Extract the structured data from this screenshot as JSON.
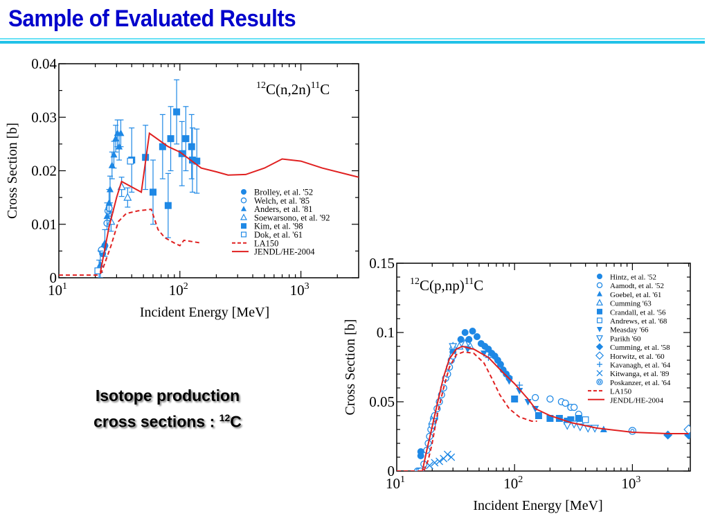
{
  "page": {
    "title": "Sample of Evaluated Results",
    "caption_line1": "Isotope production",
    "caption_line2": "cross sections : ",
    "caption_sup": "12",
    "caption_elem": "C"
  },
  "colors": {
    "title": "#0000cc",
    "exp": "#1e88e5",
    "eval": "#e02020"
  },
  "chart_data": [
    {
      "type": "scatter",
      "title_pre": "12",
      "title_mid": "C(n,2n)",
      "title_sup2": "11",
      "title_end": "C",
      "xlabel": "Incident Energy [MeV]",
      "ylabel": "Cross Section [b]",
      "xscale": "log",
      "xlim": [
        10,
        3000
      ],
      "ylim": [
        0,
        0.04
      ],
      "xticks": [
        {
          "base": "10",
          "exp": "1",
          "v": 10
        },
        {
          "base": "10",
          "exp": "2",
          "v": 100
        },
        {
          "base": "10",
          "exp": "3",
          "v": 1000
        }
      ],
      "yticks": [
        {
          "label": "0",
          "v": 0
        },
        {
          "label": "0.01",
          "v": 0.01
        },
        {
          "label": "0.02",
          "v": 0.02
        },
        {
          "label": "0.03",
          "v": 0.03
        },
        {
          "label": "0.04",
          "v": 0.04
        }
      ],
      "legend_position": "lower-right",
      "series": [
        {
          "name": "Brolley, et al. '52",
          "marker": "circle-filled",
          "points": [
            [
              23,
              0.0045
            ],
            [
              23.5,
              0.0055
            ],
            [
              24,
              0.006
            ]
          ]
        },
        {
          "name": "Welch, et al. '85",
          "marker": "circle-open",
          "points": [
            [
              22.5,
              0.0052
            ],
            [
              25,
              0.0102
            ],
            [
              25.5,
              0.0125
            ],
            [
              26,
              0.013
            ]
          ]
        },
        {
          "name": "Anders, et al. '81",
          "marker": "triangle-filled",
          "points": [
            [
              22,
              0.0025
            ],
            [
              24,
              0.0065
            ],
            [
              25,
              0.0115
            ],
            [
              26,
              0.014
            ],
            [
              26.5,
              0.0165
            ],
            [
              27.5,
              0.021
            ],
            [
              28.5,
              0.023
            ],
            [
              29.5,
              0.026
            ],
            [
              30.5,
              0.027
            ],
            [
              31.5,
              0.0245
            ],
            [
              32.5,
              0.027
            ]
          ],
          "err": 0.0025
        },
        {
          "name": "Soewarsono, et al. '92",
          "marker": "triangle-open",
          "points": [
            [
              21.5,
              0.0015
            ],
            [
              27,
              0.0105
            ],
            [
              33,
              0.017
            ],
            [
              37,
              0.015
            ]
          ],
          "err": 0.0018
        },
        {
          "name": "Kim, et al. '98",
          "marker": "square-filled",
          "points": [
            [
              40,
              0.022
            ],
            [
              52,
              0.0225
            ],
            [
              60,
              0.016
            ],
            [
              72,
              0.0245
            ],
            [
              80,
              0.0135
            ],
            [
              84,
              0.026
            ],
            [
              94,
              0.031
            ],
            [
              104,
              0.0232
            ],
            [
              112,
              0.026
            ],
            [
              125,
              0.0245
            ],
            [
              127,
              0.022
            ],
            [
              138,
              0.0218
            ]
          ],
          "err": 0.006
        },
        {
          "name": "Dok, et al. '61",
          "marker": "square-open",
          "points": [
            [
              21,
              0.0013
            ],
            [
              39,
              0.0218
            ]
          ]
        },
        {
          "name": "LA150",
          "marker": "dashed-line",
          "points": [
            [
              10,
              0.0005
            ],
            [
              21,
              0.0005
            ],
            [
              22.5,
              0.001
            ],
            [
              27,
              0.006
            ],
            [
              31,
              0.0105
            ],
            [
              36,
              0.012
            ],
            [
              45,
              0.0125
            ],
            [
              58,
              0.0128
            ],
            [
              66,
              0.009
            ],
            [
              75,
              0.0075
            ],
            [
              90,
              0.0065
            ],
            [
              100,
              0.006
            ],
            [
              108,
              0.007
            ],
            [
              150,
              0.0065
            ]
          ]
        },
        {
          "name": "JENDL/HE-2004",
          "marker": "solid-line",
          "points": [
            [
              22,
              0.001
            ],
            [
              26,
              0.0095
            ],
            [
              30,
              0.015
            ],
            [
              33,
              0.018
            ],
            [
              48,
              0.016
            ],
            [
              56,
              0.027
            ],
            [
              80,
              0.0245
            ],
            [
              100,
              0.0235
            ],
            [
              150,
              0.0205
            ],
            [
              200,
              0.0198
            ],
            [
              250,
              0.0192
            ],
            [
              350,
              0.0193
            ],
            [
              500,
              0.0205
            ],
            [
              700,
              0.0222
            ],
            [
              1000,
              0.0218
            ],
            [
              1500,
              0.0205
            ],
            [
              3000,
              0.0188
            ]
          ]
        }
      ]
    },
    {
      "type": "scatter",
      "title_pre": "12",
      "title_mid": "C(p,np)",
      "title_sup2": "11",
      "title_end": "C",
      "xlabel": "Incident Energy [MeV]",
      "ylabel": "Cross Section [b]",
      "xscale": "log",
      "xlim": [
        10,
        3100
      ],
      "ylim": [
        0,
        0.15
      ],
      "xticks": [
        {
          "base": "10",
          "exp": "1",
          "v": 10
        },
        {
          "base": "10",
          "exp": "2",
          "v": 100
        },
        {
          "base": "10",
          "exp": "3",
          "v": 1000
        }
      ],
      "yticks": [
        {
          "label": "0",
          "v": 0
        },
        {
          "label": "0.05",
          "v": 0.05
        },
        {
          "label": "0.1",
          "v": 0.1
        },
        {
          "label": "0.15",
          "v": 0.15
        }
      ],
      "legend_position": "top-right",
      "series": [
        {
          "name": "Hintz, et al. '52",
          "marker": "circle-filled",
          "points": [
            [
              16,
              0.014
            ],
            [
              16,
              0.011
            ],
            [
              21,
              0.038
            ],
            [
              30,
              0.086
            ],
            [
              35,
              0.095
            ],
            [
              38,
              0.1
            ],
            [
              41,
              0.095
            ],
            [
              44,
              0.101
            ],
            [
              48,
              0.097
            ],
            [
              52,
              0.092
            ],
            [
              56,
              0.09
            ],
            [
              60,
              0.088
            ],
            [
              64,
              0.085
            ],
            [
              68,
              0.083
            ],
            [
              72,
              0.08
            ],
            [
              76,
              0.077
            ],
            [
              80,
              0.073
            ],
            [
              85,
              0.07
            ],
            [
              90,
              0.067
            ]
          ]
        },
        {
          "name": "Aamodt, et al. '52",
          "marker": "circle-open",
          "points": [
            [
              15,
              0
            ],
            [
              15.5,
              0
            ],
            [
              16,
              0
            ],
            [
              17,
              0.005
            ],
            [
              18,
              0.015
            ],
            [
              18.5,
              0.02
            ],
            [
              19,
              0.025
            ],
            [
              19.5,
              0.03
            ],
            [
              20,
              0.033
            ],
            [
              20.5,
              0.038
            ],
            [
              21,
              0.04
            ],
            [
              22,
              0.045
            ],
            [
              23,
              0.05
            ],
            [
              24,
              0.055
            ],
            [
              25,
              0.06
            ],
            [
              26,
              0.067
            ],
            [
              27,
              0.07
            ],
            [
              28,
              0.075
            ],
            [
              29,
              0.08
            ],
            [
              30,
              0.083
            ],
            [
              150,
              0.053
            ],
            [
              200,
              0.052
            ],
            [
              250,
              0.05
            ],
            [
              270,
              0.049
            ],
            [
              300,
              0.046
            ],
            [
              320,
              0.046
            ],
            [
              350,
              0.041
            ]
          ]
        },
        {
          "name": "Goebel, et al. '61",
          "marker": "triangle-filled",
          "points": [
            [
              570,
              0.03
            ]
          ]
        },
        {
          "name": "Cumming '63",
          "marker": "triangle-open",
          "points": [
            [
              20,
              0.036
            ],
            [
              30,
              0.09
            ],
            [
              34,
              0.09
            ],
            [
              38,
              0.092
            ],
            [
              42,
              0.09
            ]
          ]
        },
        {
          "name": "Crandall, et al. '56",
          "marker": "square-filled",
          "points": [
            [
              100,
              0.052
            ],
            [
              160,
              0.04
            ],
            [
              200,
              0.038
            ],
            [
              240,
              0.038
            ],
            [
              280,
              0.036
            ],
            [
              300,
              0.037
            ],
            [
              350,
              0.038
            ]
          ]
        },
        {
          "name": "Andrews, et al. '68",
          "marker": "square-open",
          "points": [
            [
              400,
              0.037
            ]
          ]
        },
        {
          "name": "Measday '66",
          "marker": "triangle-down-filled",
          "points": [
            [
              40,
              0.088
            ],
            [
              55,
              0.085
            ],
            [
              70,
              0.08
            ],
            [
              90,
              0.065
            ],
            [
              110,
              0.058
            ],
            [
              130,
              0.05
            ],
            [
              150,
              0.045
            ]
          ]
        },
        {
          "name": "Parikh '60",
          "marker": "triangle-down-open",
          "points": [
            [
              30,
              0.09
            ],
            [
              280,
              0.033
            ],
            [
              320,
              0.034
            ],
            [
              360,
              0.032
            ],
            [
              420,
              0.031
            ],
            [
              480,
              0.031
            ]
          ]
        },
        {
          "name": "Cumming, et al. '58",
          "marker": "diamond-filled",
          "points": [
            [
              2000,
              0.026
            ],
            [
              3000,
              0.026
            ]
          ]
        },
        {
          "name": "Horwitz, et al. '60",
          "marker": "diamond-open",
          "points": [
            [
              3000,
              0.03
            ]
          ]
        },
        {
          "name": "Kavanagh, et al. '64",
          "marker": "plus",
          "points": [
            [
              60,
              0.082
            ],
            [
              90,
              0.068
            ],
            [
              110,
              0.062
            ]
          ]
        },
        {
          "name": "Kitwanga, et al. '89",
          "marker": "cross",
          "points": [
            [
              19,
              0.004
            ],
            [
              21,
              0.006
            ],
            [
              23,
              0.007
            ],
            [
              25,
              0.009
            ],
            [
              27,
              0.012
            ],
            [
              29,
              0.01
            ]
          ]
        },
        {
          "name": "Poskanzer, et al. '64",
          "marker": "bullseye",
          "points": [
            [
              1000,
              0.029
            ]
          ]
        },
        {
          "name": "LA150",
          "marker": "dashed-line",
          "points": [
            [
              10,
              0
            ],
            [
              17,
              0
            ],
            [
              18.5,
              0.008
            ],
            [
              20,
              0.02
            ],
            [
              22,
              0.04
            ],
            [
              25,
              0.06
            ],
            [
              28,
              0.075
            ],
            [
              32,
              0.084
            ],
            [
              37,
              0.086
            ],
            [
              45,
              0.085
            ],
            [
              55,
              0.078
            ],
            [
              65,
              0.066
            ],
            [
              75,
              0.055
            ],
            [
              90,
              0.045
            ],
            [
              110,
              0.039
            ],
            [
              140,
              0.036
            ],
            [
              155,
              0.036
            ]
          ]
        },
        {
          "name": "JENDL/HE-2004",
          "marker": "solid-line",
          "points": [
            [
              16.5,
              0
            ],
            [
              18,
              0.015
            ],
            [
              20,
              0.032
            ],
            [
              22,
              0.048
            ],
            [
              25,
              0.068
            ],
            [
              28,
              0.081
            ],
            [
              32,
              0.088
            ],
            [
              36,
              0.09
            ],
            [
              45,
              0.088
            ],
            [
              60,
              0.082
            ],
            [
              80,
              0.071
            ],
            [
              100,
              0.063
            ],
            [
              130,
              0.052
            ],
            [
              150,
              0.045
            ],
            [
              200,
              0.04
            ],
            [
              300,
              0.035
            ],
            [
              500,
              0.031
            ],
            [
              1000,
              0.028
            ],
            [
              2000,
              0.027
            ],
            [
              3000,
              0.027
            ]
          ]
        }
      ]
    }
  ]
}
